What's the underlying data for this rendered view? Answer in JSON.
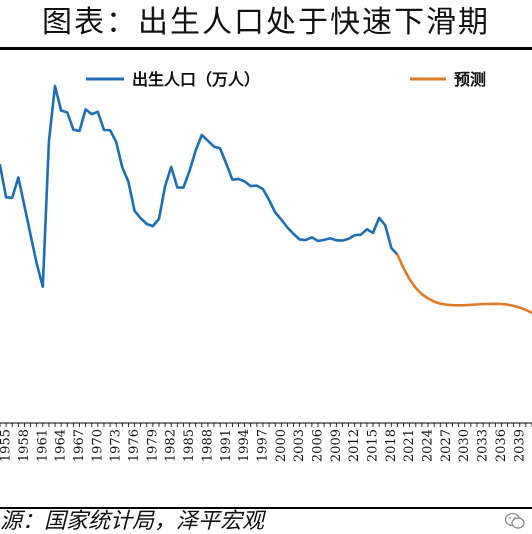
{
  "title": "图表：出生人口处于快速下滑期",
  "source": "源：国家统计局，泽平宏观",
  "logo_icon": "wechat-icon",
  "chart_data": {
    "type": "line",
    "title": "图表：出生人口处于快速下滑期",
    "xlabel": "",
    "ylabel": "",
    "xlim": [
      1954,
      2041
    ],
    "ylim": [
      0,
      3100
    ],
    "grid": false,
    "legend_position": "top",
    "x_ticks": [
      1955,
      1958,
      1961,
      1964,
      1967,
      1970,
      1973,
      1976,
      1979,
      1982,
      1985,
      1988,
      1991,
      1994,
      1997,
      2000,
      2003,
      2006,
      2009,
      2012,
      2015,
      2018,
      2021,
      2024,
      2027,
      2030,
      2033,
      2036,
      2039
    ],
    "series": [
      {
        "name": "出生人口（万人）",
        "color": "#1f6db5",
        "x": [
          1954,
          1955,
          1956,
          1957,
          1958,
          1959,
          1960,
          1961,
          1962,
          1963,
          1964,
          1965,
          1966,
          1967,
          1968,
          1969,
          1970,
          1971,
          1972,
          1973,
          1974,
          1975,
          1976,
          1977,
          1978,
          1979,
          1980,
          1981,
          1982,
          1983,
          1984,
          1985,
          1986,
          1987,
          1988,
          1989,
          1990,
          1991,
          1992,
          1993,
          1994,
          1995,
          1996,
          1997,
          1998,
          1999,
          2000,
          2001,
          2002,
          2003,
          2004,
          2005,
          2006,
          2007,
          2008,
          2009,
          2010,
          2011,
          2012,
          2013,
          2014,
          2015,
          2016,
          2017,
          2018,
          2019
        ],
        "values": [
          2245,
          1965,
          1961,
          2138,
          1889,
          1635,
          1389,
          1187,
          2451,
          2934,
          2721,
          2704,
          2554,
          2543,
          2731,
          2690,
          2710,
          2551,
          2550,
          2447,
          2226,
          2102,
          1849,
          1783,
          1733,
          1715,
          1776,
          2064,
          2230,
          2052,
          2050,
          2196,
          2374,
          2508,
          2457,
          2407,
          2391,
          2258,
          2119,
          2126,
          2104,
          2063,
          2067,
          2038,
          1942,
          1834,
          1771,
          1702,
          1647,
          1599,
          1593,
          1617,
          1585,
          1594,
          1608,
          1591,
          1588,
          1604,
          1635,
          1640,
          1687,
          1655,
          1786,
          1723,
          1523,
          1465
        ]
      },
      {
        "name": "预测",
        "color": "#e07b28",
        "x": [
          2019,
          2020,
          2021,
          2022,
          2023,
          2024,
          2025,
          2026,
          2027,
          2028,
          2029,
          2030,
          2031,
          2032,
          2033,
          2034,
          2035,
          2036,
          2037,
          2038,
          2039,
          2040,
          2041
        ],
        "values": [
          1465,
          1347,
          1250,
          1175,
          1122,
          1085,
          1056,
          1040,
          1030,
          1026,
          1025,
          1026,
          1029,
          1032,
          1035,
          1037,
          1038,
          1036,
          1031,
          1020,
          1005,
          985,
          960
        ]
      }
    ]
  }
}
